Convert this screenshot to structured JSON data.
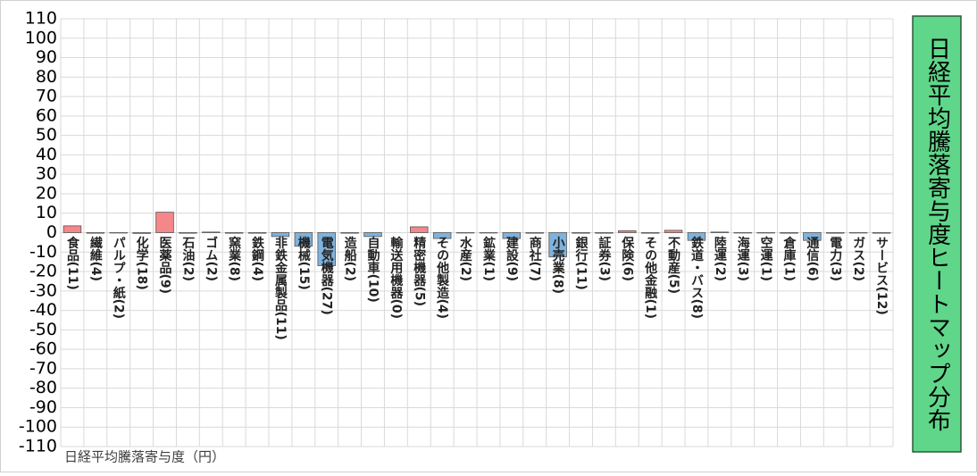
{
  "chart_data": {
    "type": "bar",
    "title": "日経平均騰落寄与度ヒートマップ分布",
    "y_label": "日経平均騰落寄与度（円）",
    "categories": [
      "食品(11)",
      "繊維(4)",
      "パルプ・紙(2)",
      "化学(18)",
      "医薬品(9)",
      "石油(2)",
      "ゴム(2)",
      "窯業(8)",
      "鉄鋼(4)",
      "非鉄金属製品(11)",
      "機械(15)",
      "電気機器(27)",
      "造船(2)",
      "自動車(10)",
      "輸送用機器(0)",
      "精密機器(5)",
      "その他製造(4)",
      "水産(2)",
      "鉱業(1)",
      "建設(9)",
      "商社(7)",
      "小売業(8)",
      "銀行(11)",
      "証券(3)",
      "保険(6)",
      "その他金融(1)",
      "不動産(5)",
      "鉄道・バス(8)",
      "陸運(2)",
      "海運(3)",
      "空運(1)",
      "倉庫(1)",
      "通信(6)",
      "電力(3)",
      "ガス(2)",
      "サービス(12)"
    ],
    "values": [
      3.5,
      -0.3,
      -0.2,
      -0.4,
      10.5,
      -0.3,
      0.3,
      -0.3,
      -0.3,
      -2,
      -7,
      -17,
      -0.3,
      -2,
      0,
      3,
      -3,
      -0.2,
      -0.2,
      -3,
      -0.3,
      -12.5,
      -0.3,
      -0.3,
      1,
      -0.3,
      1.2,
      -4,
      0.3,
      -0.2,
      -0.2,
      -0.3,
      -4,
      -0.3,
      -0.2,
      -0.3
    ],
    "positive_color": "#f4878a",
    "negative_color": "#7fb2dc",
    "ylim": [
      -110,
      110
    ],
    "yticks": [
      -110,
      -100,
      -90,
      -80,
      -70,
      -60,
      -50,
      -40,
      -30,
      -20,
      -10,
      0,
      10,
      20,
      30,
      40,
      50,
      60,
      70,
      80,
      90,
      100,
      110
    ],
    "grid": true
  }
}
